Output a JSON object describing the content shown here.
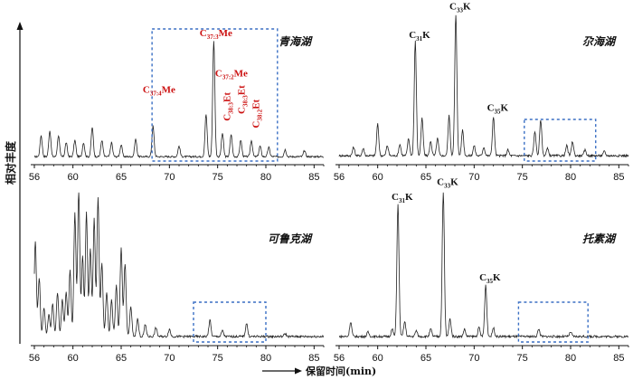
{
  "figure": {
    "ylabel": "相对丰度",
    "xlabel": "保留时间(min)"
  },
  "chart_data": [
    {
      "type": "line",
      "title": "青海湖",
      "xlim": [
        56,
        86
      ],
      "ticks": [
        56,
        60,
        65,
        70,
        75,
        80,
        85
      ],
      "highlight_range": [
        68.2,
        81.2
      ],
      "peaks": [
        [
          56.7,
          0.18
        ],
        [
          57.6,
          0.22
        ],
        [
          58.5,
          0.18
        ],
        [
          59.3,
          0.12
        ],
        [
          60.2,
          0.14
        ],
        [
          61.1,
          0.12
        ],
        [
          62.0,
          0.25
        ],
        [
          63.0,
          0.14
        ],
        [
          64.0,
          0.12
        ],
        [
          65.0,
          0.1
        ],
        [
          66.5,
          0.15
        ],
        [
          68.3,
          0.26
        ],
        [
          71.0,
          0.09
        ],
        [
          73.8,
          0.36
        ],
        [
          74.6,
          1.0
        ],
        [
          75.5,
          0.2
        ],
        [
          76.4,
          0.19
        ],
        [
          77.4,
          0.14
        ],
        [
          78.5,
          0.14
        ],
        [
          79.4,
          0.09
        ],
        [
          80.3,
          0.08
        ],
        [
          82.0,
          0.06
        ],
        [
          84.0,
          0.05
        ]
      ],
      "annotations": [
        {
          "main": "C",
          "sub": "37:4",
          "suffix": "Me",
          "color": "#cc1111",
          "x": 67.8,
          "level": 0.58
        },
        {
          "main": "C",
          "sub": "37:3",
          "suffix": "Me",
          "color": "#cc1111",
          "x": 73.7,
          "level": 1.06
        },
        {
          "main": "C",
          "sub": "37:2",
          "suffix": "Me",
          "color": "#cc1111",
          "x": 75.3,
          "level": 0.72
        },
        {
          "main": "C",
          "sub": "38:3",
          "suffix": "Et",
          "color": "#cc1111",
          "x": 76.3,
          "level": 0.34,
          "vertical": true
        },
        {
          "main": "C",
          "sub": "38:3",
          "suffix": "Et",
          "color": "#cc1111",
          "x": 77.8,
          "level": 0.4,
          "vertical": true
        },
        {
          "main": "C",
          "sub": "38:2",
          "suffix": "Et",
          "color": "#cc1111",
          "x": 79.3,
          "level": 0.28,
          "vertical": true
        }
      ]
    },
    {
      "type": "line",
      "title": "尕海湖",
      "xlim": [
        56,
        86
      ],
      "ticks": [
        56,
        60,
        65,
        70,
        75,
        80,
        85
      ],
      "highlight_range": [
        75.2,
        82.6
      ],
      "peaks": [
        [
          57.5,
          0.06
        ],
        [
          58.5,
          0.05
        ],
        [
          60.0,
          0.22
        ],
        [
          61.0,
          0.07
        ],
        [
          62.3,
          0.08
        ],
        [
          63.2,
          0.12
        ],
        [
          63.9,
          0.8
        ],
        [
          64.6,
          0.26
        ],
        [
          65.5,
          0.1
        ],
        [
          66.2,
          0.12
        ],
        [
          67.4,
          0.28
        ],
        [
          68.1,
          1.0
        ],
        [
          68.8,
          0.18
        ],
        [
          70.0,
          0.07
        ],
        [
          71.0,
          0.06
        ],
        [
          72.0,
          0.27
        ],
        [
          73.5,
          0.04
        ],
        [
          76.3,
          0.17
        ],
        [
          76.9,
          0.25
        ],
        [
          77.6,
          0.05
        ],
        [
          79.6,
          0.07
        ],
        [
          80.2,
          0.1
        ],
        [
          81.5,
          0.04
        ],
        [
          83.5,
          0.03
        ]
      ],
      "annotations": [
        {
          "main": "C",
          "sub": "31",
          "suffix": "K",
          "color": "#111111",
          "x": 63.8,
          "level": 0.86
        },
        {
          "main": "C",
          "sub": "33",
          "suffix": "K",
          "color": "#111111",
          "x": 68.0,
          "level": 1.06
        },
        {
          "main": "C",
          "sub": "35",
          "suffix": "K",
          "color": "#111111",
          "x": 71.9,
          "level": 0.35
        }
      ]
    },
    {
      "type": "line",
      "title": "可鲁克湖",
      "xlim": [
        56,
        86
      ],
      "ticks": [
        56,
        60,
        65,
        70,
        75,
        80,
        85
      ],
      "highlight_range": [
        72.5,
        80.0
      ],
      "peaks": [
        [
          56.1,
          0.65
        ],
        [
          56.5,
          0.4
        ],
        [
          57.0,
          0.2
        ],
        [
          57.5,
          0.15
        ],
        [
          57.9,
          0.22
        ],
        [
          58.4,
          0.3
        ],
        [
          58.9,
          0.25
        ],
        [
          59.3,
          0.3
        ],
        [
          59.7,
          0.45
        ],
        [
          60.2,
          0.85
        ],
        [
          60.6,
          1.0
        ],
        [
          61.0,
          0.55
        ],
        [
          61.4,
          0.85
        ],
        [
          61.8,
          0.6
        ],
        [
          62.2,
          0.8
        ],
        [
          62.6,
          0.95
        ],
        [
          63.0,
          0.5
        ],
        [
          63.5,
          0.3
        ],
        [
          64.0,
          0.25
        ],
        [
          64.5,
          0.35
        ],
        [
          65.0,
          0.6
        ],
        [
          65.4,
          0.5
        ],
        [
          66.0,
          0.2
        ],
        [
          66.7,
          0.12
        ],
        [
          67.5,
          0.08
        ],
        [
          68.6,
          0.06
        ],
        [
          70.0,
          0.05
        ],
        [
          74.2,
          0.11
        ],
        [
          75.5,
          0.04
        ],
        [
          78.0,
          0.09
        ],
        [
          82.0,
          0.02
        ]
      ],
      "annotations": []
    },
    {
      "type": "line",
      "title": "托素湖",
      "xlim": [
        56,
        86
      ],
      "ticks": [
        56,
        60,
        65,
        70,
        75,
        80,
        85
      ],
      "highlight_range": [
        74.6,
        81.8
      ],
      "peaks": [
        [
          57.2,
          0.1
        ],
        [
          59.0,
          0.03
        ],
        [
          61.5,
          0.05
        ],
        [
          62.1,
          0.9
        ],
        [
          62.8,
          0.1
        ],
        [
          64.0,
          0.04
        ],
        [
          65.5,
          0.05
        ],
        [
          66.8,
          1.0
        ],
        [
          67.5,
          0.12
        ],
        [
          69.0,
          0.05
        ],
        [
          70.5,
          0.06
        ],
        [
          71.2,
          0.35
        ],
        [
          72.0,
          0.06
        ],
        [
          76.7,
          0.05
        ],
        [
          80.0,
          0.03
        ]
      ],
      "annotations": [
        {
          "main": "C",
          "sub": "31",
          "suffix": "K",
          "color": "#111111",
          "x": 62.0,
          "level": 0.97
        },
        {
          "main": "C",
          "sub": "33",
          "suffix": "K",
          "color": "#111111",
          "x": 66.7,
          "level": 1.07
        },
        {
          "main": "C",
          "sub": "35",
          "suffix": "K",
          "color": "#111111",
          "x": 71.1,
          "level": 0.42
        }
      ]
    }
  ]
}
